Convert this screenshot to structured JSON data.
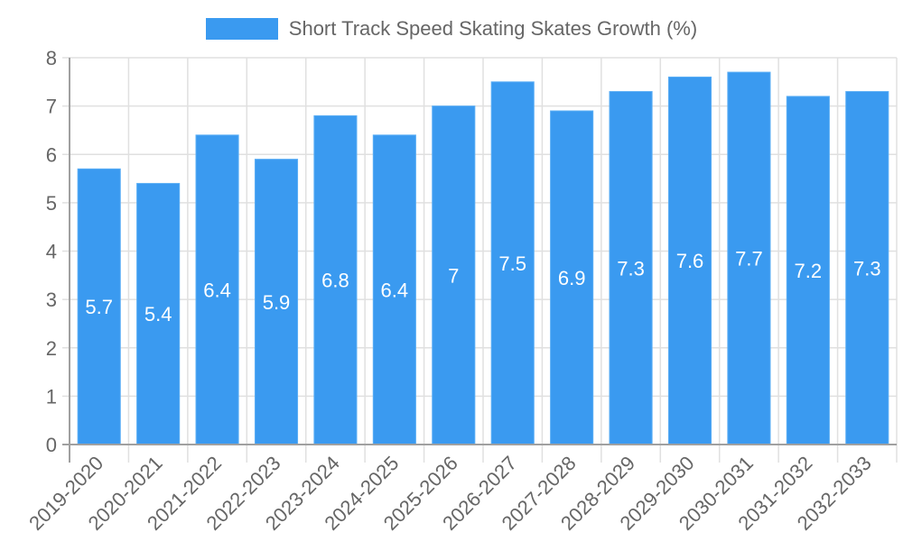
{
  "legend": {
    "label": "Short Track Speed Skating Skates Growth (%)",
    "color": "#3a9af0"
  },
  "colors": {
    "bar": "#3a9af0",
    "bar_border": "#5aaef5",
    "grid": "#e0e0e0",
    "axis": "#a0a0a0",
    "tick_text": "#666666",
    "bar_label": "#ffffff"
  },
  "chart_data": {
    "type": "bar",
    "title": "",
    "xlabel": "",
    "ylabel": "",
    "categories": [
      "2019-2020",
      "2020-2021",
      "2021-2022",
      "2022-2023",
      "2023-2024",
      "2024-2025",
      "2025-2026",
      "2026-2027",
      "2027-2028",
      "2028-2029",
      "2029-2030",
      "2030-2031",
      "2031-2032",
      "2032-2033"
    ],
    "series": [
      {
        "name": "Short Track Speed Skating Skates Growth (%)",
        "values": [
          5.7,
          5.4,
          6.4,
          5.9,
          6.8,
          6.4,
          7,
          7.5,
          6.9,
          7.3,
          7.6,
          7.7,
          7.2,
          7.3
        ]
      }
    ],
    "values": [
      5.7,
      5.4,
      6.4,
      5.9,
      6.8,
      6.4,
      7,
      7.5,
      6.9,
      7.3,
      7.6,
      7.7,
      7.2,
      7.3
    ],
    "ylim": [
      0,
      8
    ],
    "yticks": [
      0,
      1,
      2,
      3,
      4,
      5,
      6,
      7,
      8
    ],
    "grid": true,
    "legend_position": "top",
    "data_labels": true,
    "x_tick_rotation": -45
  }
}
